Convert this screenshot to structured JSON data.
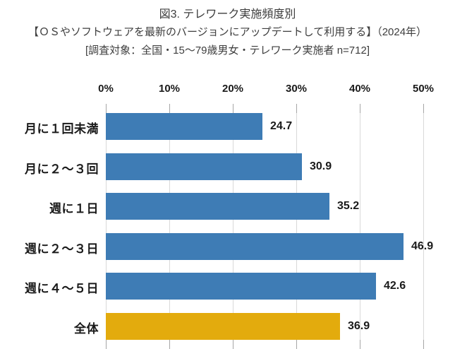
{
  "title": {
    "line1": "図3. テレワーク実施頻度別",
    "line2": "【ＯＳやソフトウェアを最新のバージョンにアップデートして利用する】（2024年）",
    "line3": "[調査対象：全国・15～79歳男女・テレワーク実施者 n=712]"
  },
  "chart_data": {
    "type": "bar",
    "orientation": "horizontal",
    "title": "図3. テレワーク実施頻度別【ＯＳやソフトウェアを最新のバージョンにアップデートして利用する】（2024年）",
    "categories": [
      "月に１回未満",
      "月に２～３回",
      "週に１日",
      "週に２～３日",
      "週に４～５日",
      "全体"
    ],
    "values": [
      24.7,
      30.9,
      35.2,
      46.9,
      42.6,
      36.9
    ],
    "value_labels": [
      "24.7",
      "30.9",
      "35.2",
      "46.9",
      "42.6",
      "36.9"
    ],
    "x_axis_ticks": [
      "0%",
      "10%",
      "20%",
      "30%",
      "40%",
      "50%"
    ],
    "xlim": [
      0,
      50
    ],
    "axis_position": "top",
    "grid": "vertical",
    "unit": "percent",
    "colors": {
      "bar_default": "#3E7CB5",
      "bar_highlight": "#E3AB0D",
      "gridline": "#D9D9D9",
      "tick": "#A6A6A6",
      "label_text": "#1A1A1A",
      "title_text": "#3D3D3D"
    },
    "highlight_category": "全体"
  }
}
